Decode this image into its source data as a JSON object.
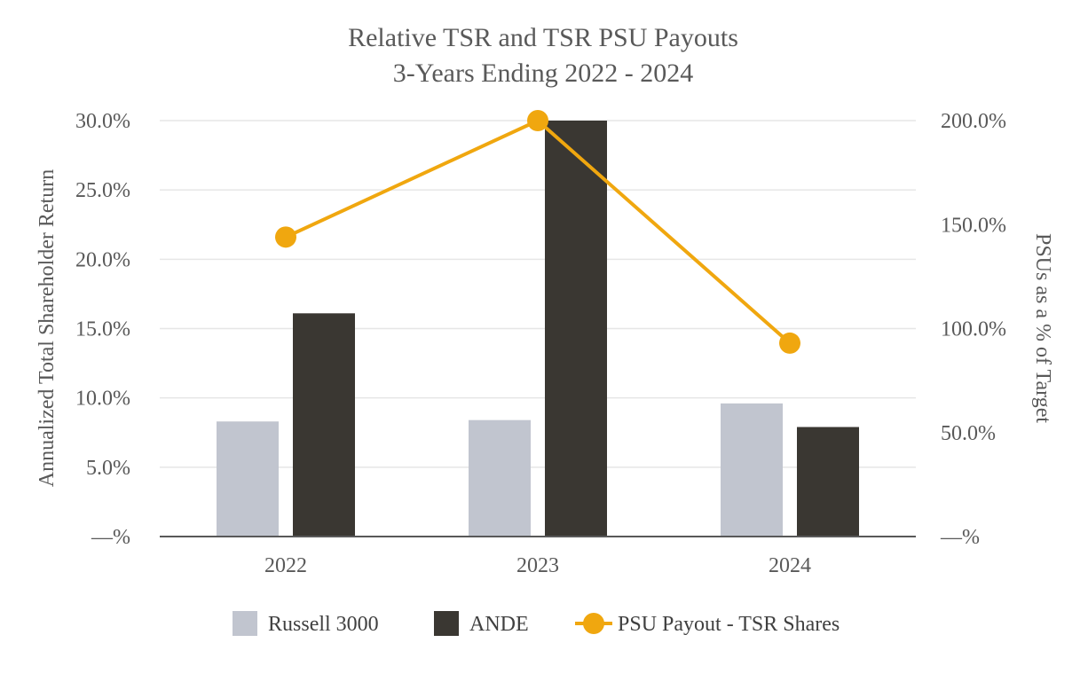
{
  "chart_data": {
    "type": "bar+line",
    "title": "Relative TSR and TSR PSU Payouts",
    "subtitle": "3-Years Ending 2022 - 2024",
    "categories": [
      "2022",
      "2023",
      "2024"
    ],
    "series": [
      {
        "name": "Russell 3000",
        "type": "bar",
        "axis": "left",
        "color": "#c1c5cf",
        "values": [
          8.3,
          8.4,
          9.6
        ]
      },
      {
        "name": "ANDE",
        "type": "bar",
        "axis": "left",
        "color": "#3a3732",
        "values": [
          16.1,
          30.0,
          7.9
        ]
      },
      {
        "name": "PSU Payout - TSR Shares",
        "type": "line",
        "axis": "right",
        "color": "#f0a70f",
        "values": [
          144.0,
          200.0,
          93.0
        ]
      }
    ],
    "ylabel": "Annualized Total Shareholder Return",
    "y2label": "PSUs as a % of Target",
    "ylim": [
      0,
      30
    ],
    "y2lim": [
      0,
      200
    ],
    "yticks": [
      "—%",
      "5.0%",
      "10.0%",
      "15.0%",
      "20.0%",
      "25.0%",
      "30.0%"
    ],
    "y2ticks": [
      "—%",
      "50.0%",
      "100.0%",
      "150.0%",
      "200.0%"
    ],
    "legend_position": "bottom",
    "grid": true
  }
}
